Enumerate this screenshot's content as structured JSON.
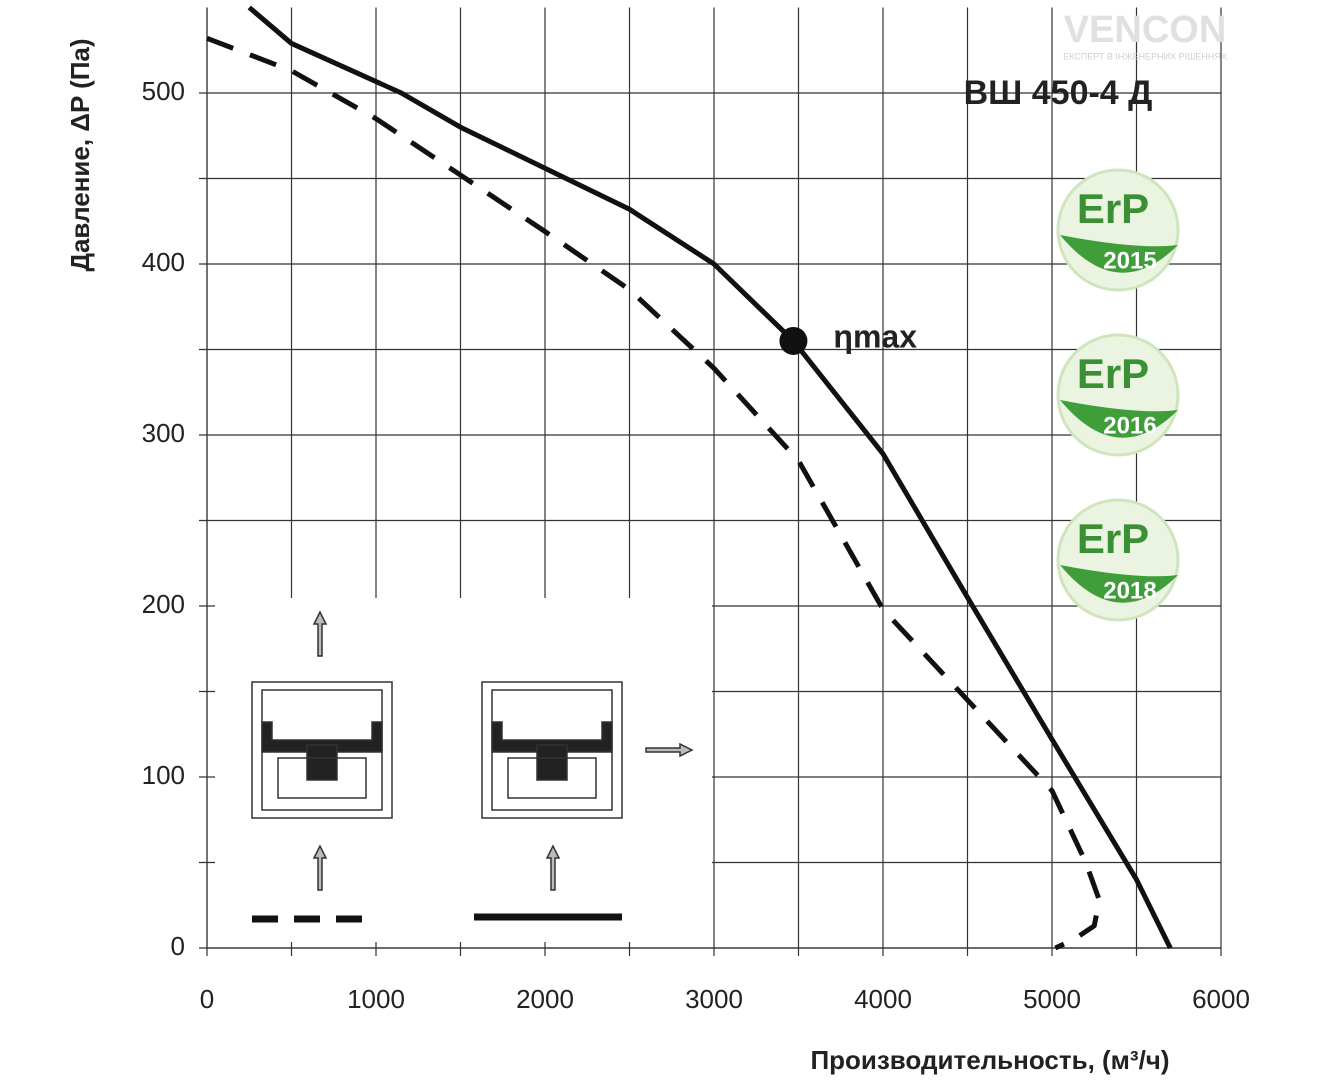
{
  "chart_data": {
    "type": "line",
    "title": "ВШ 450-4 Д",
    "x_label": "Производительность, (м³/ч)",
    "y_label": "Давление, ΔP (Па)",
    "xlim": [
      0,
      6000
    ],
    "ylim": [
      0,
      550
    ],
    "xticks": [
      0,
      1000,
      2000,
      3000,
      4000,
      5000,
      6000
    ],
    "xminorticks": [
      500,
      1500,
      2500,
      3500,
      4500,
      5500
    ],
    "yticks": [
      0,
      100,
      200,
      300,
      400,
      500
    ],
    "yminorticks": [
      50,
      150,
      250,
      350,
      450
    ],
    "grid": true,
    "series": [
      {
        "color": "#111111",
        "dashed": true,
        "x": [
          0,
          500,
          1000,
          1500,
          2000,
          2500,
          3000,
          3500,
          4000,
          4500,
          5000,
          5200,
          5280,
          5250,
          5130,
          5020
        ],
        "values": [
          532,
          513,
          485,
          452,
          419,
          385,
          339,
          285,
          198,
          145,
          92,
          50,
          28,
          13,
          5,
          0
        ]
      },
      {
        "color": "#111111",
        "dashed": false,
        "x": [
          250,
          500,
          1150,
          1500,
          2000,
          2500,
          3000,
          3470,
          4000,
          4500,
          5000,
          5500,
          5700
        ],
        "values": [
          550,
          529,
          500,
          480,
          456,
          432,
          400,
          355,
          289,
          205,
          122,
          40,
          0
        ]
      }
    ],
    "annotation": {
      "text": "ηmax",
      "x": 3470,
      "y": 355
    },
    "logo": {
      "name": "VENCON",
      "tagline": "ЕКСПЕРТ В ІНЖЕНЕРНИХ РІШЕННЯХ"
    },
    "badges": [
      {
        "label": "ErP",
        "year": "2015"
      },
      {
        "label": "ErP",
        "year": "2016"
      },
      {
        "label": "ErP",
        "year": "2018"
      }
    ]
  }
}
